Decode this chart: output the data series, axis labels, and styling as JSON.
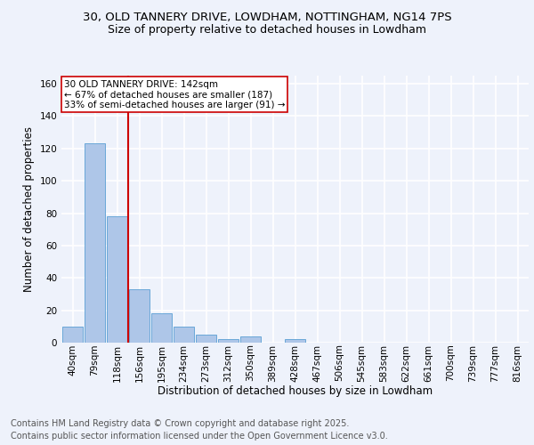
{
  "title_line1": "30, OLD TANNERY DRIVE, LOWDHAM, NOTTINGHAM, NG14 7PS",
  "title_line2": "Size of property relative to detached houses in Lowdham",
  "xlabel": "Distribution of detached houses by size in Lowdham",
  "ylabel": "Number of detached properties",
  "bar_color": "#aec6e8",
  "bar_edge_color": "#5a9fd4",
  "bin_labels": [
    "40sqm",
    "79sqm",
    "118sqm",
    "156sqm",
    "195sqm",
    "234sqm",
    "273sqm",
    "312sqm",
    "350sqm",
    "389sqm",
    "428sqm",
    "467sqm",
    "506sqm",
    "545sqm",
    "583sqm",
    "622sqm",
    "661sqm",
    "700sqm",
    "739sqm",
    "777sqm",
    "816sqm"
  ],
  "bin_values": [
    10,
    123,
    78,
    33,
    18,
    10,
    5,
    2,
    4,
    0,
    2,
    0,
    0,
    0,
    0,
    0,
    0,
    0,
    0,
    0,
    0
  ],
  "ylim": [
    0,
    165
  ],
  "yticks": [
    0,
    20,
    40,
    60,
    80,
    100,
    120,
    140,
    160
  ],
  "vline_bin_index": 2,
  "vline_color": "#cc0000",
  "annotation_text": "30 OLD TANNERY DRIVE: 142sqm\n← 67% of detached houses are smaller (187)\n33% of semi-detached houses are larger (91) →",
  "annotation_box_color": "#ffffff",
  "annotation_box_edge_color": "#cc0000",
  "footer_line1": "Contains HM Land Registry data © Crown copyright and database right 2025.",
  "footer_line2": "Contains public sector information licensed under the Open Government Licence v3.0.",
  "background_color": "#eef2fb",
  "grid_color": "#ffffff",
  "title_fontsize": 9.5,
  "subtitle_fontsize": 9,
  "label_fontsize": 8.5,
  "tick_fontsize": 7.5,
  "annotation_fontsize": 7.5,
  "footer_fontsize": 7
}
